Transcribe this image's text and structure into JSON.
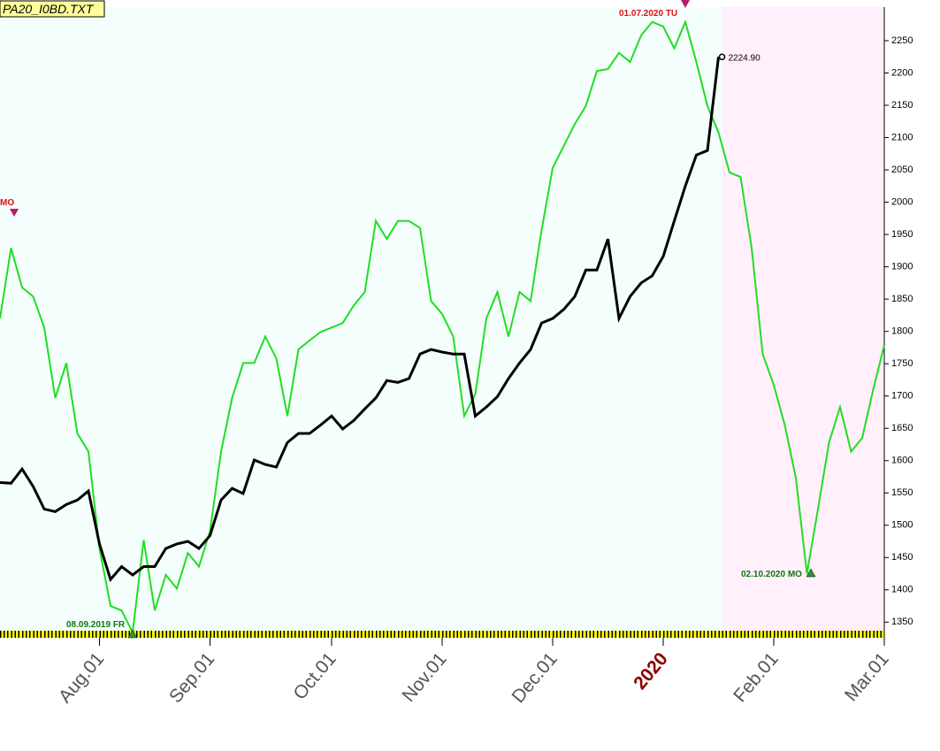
{
  "chart_data": {
    "type": "line",
    "title": "PA20_I0BD.TXT",
    "categories": [
      null,
      null,
      null,
      null,
      null,
      null,
      null,
      null,
      null,
      "Aug.01",
      null,
      null,
      null,
      null,
      null,
      null,
      null,
      null,
      null,
      "Sep.01",
      null,
      null,
      null,
      null,
      null,
      null,
      null,
      null,
      null,
      null,
      "Oct.01",
      null,
      null,
      null,
      null,
      null,
      null,
      null,
      null,
      null,
      "Nov.01",
      null,
      null,
      null,
      null,
      null,
      null,
      null,
      null,
      null,
      "Dec.01",
      null,
      null,
      null,
      null,
      null,
      null,
      null,
      null,
      null,
      "2020",
      null,
      null,
      null,
      null,
      null,
      null,
      null,
      null,
      null,
      "Feb.01",
      null,
      null,
      null,
      null,
      null,
      null,
      null,
      null,
      null,
      "Mar.01"
    ],
    "series": [
      {
        "name": null,
        "color": "#22dd22",
        "values": [
          1820,
          1929,
          1868,
          1854,
          1806,
          1697,
          1751,
          1642,
          1614,
          1464,
          1375,
          1368,
          1334,
          1477,
          1368,
          1423,
          1402,
          1457,
          1436,
          1491,
          1614,
          1697,
          1751,
          1751,
          1792,
          1758,
          1669,
          1772,
          1786,
          1799,
          1806,
          1813,
          1840,
          1861,
          1971,
          1943,
          1971,
          1971,
          1960,
          1847,
          1827,
          1792,
          1669,
          1703,
          1820,
          1861,
          1792,
          1861,
          1847,
          1957,
          2053,
          2087,
          2121,
          2149,
          2203,
          2206,
          2231,
          2217,
          2258,
          2279,
          2272,
          2238,
          2279,
          2217,
          2149,
          2108,
          2046,
          2039,
          1929,
          1765,
          1717,
          1655,
          1573,
          1425,
          1525,
          1628,
          1683,
          1614,
          1635,
          1710,
          1779
        ]
      },
      {
        "name": null,
        "color": "#000000",
        "values": [
          1566,
          1565,
          1587,
          1560,
          1525,
          1521,
          1532,
          1539,
          1553,
          1471,
          1416,
          1436,
          1423,
          1436,
          1436,
          1464,
          1471,
          1475,
          1464,
          1484,
          1539,
          1557,
          1549,
          1601,
          1594,
          1590,
          1628,
          1642,
          1642,
          1655,
          1669,
          1649,
          1662,
          1680,
          1697,
          1724,
          1721,
          1727,
          1765,
          1772,
          1768,
          1765,
          1765,
          1669,
          1683,
          1699,
          1727,
          1751,
          1772,
          1813,
          1820,
          1834,
          1854,
          1895,
          1895,
          1943,
          1820,
          1854,
          1875,
          1886,
          1916,
          1971,
          2025,
          2073,
          2080,
          2224.9,
          null,
          null,
          null,
          null,
          null,
          null,
          null,
          null,
          null,
          null,
          null,
          null,
          null,
          null,
          null
        ],
        "value_labels": [
          null,
          null,
          null,
          null,
          null,
          null,
          null,
          null,
          null,
          null,
          null,
          null,
          null,
          null,
          null,
          null,
          null,
          null,
          null,
          null,
          null,
          null,
          null,
          null,
          null,
          null,
          null,
          null,
          null,
          null,
          null,
          null,
          null,
          null,
          null,
          null,
          null,
          null,
          null,
          null,
          null,
          null,
          null,
          null,
          null,
          null,
          null,
          null,
          null,
          null,
          null,
          null,
          null,
          null,
          null,
          null,
          null,
          null,
          null,
          null,
          null,
          null,
          null,
          null,
          null,
          "2224.90",
          null,
          null,
          null,
          null,
          null,
          null,
          null,
          null,
          null,
          null,
          null,
          null,
          null,
          null,
          null
        ]
      }
    ],
    "annotations": [
      "MO",
      "08.09.2019 FR",
      "01.07.2020 TU",
      "02.10.2020 MO"
    ],
    "ylim": [
      1334,
      2302
    ],
    "yticks": [
      1350,
      1400,
      1450,
      1500,
      1550,
      1600,
      1650,
      1700,
      1750,
      1800,
      1850,
      1900,
      1950,
      2000,
      2050,
      2100,
      2150,
      2200,
      2250
    ]
  }
}
